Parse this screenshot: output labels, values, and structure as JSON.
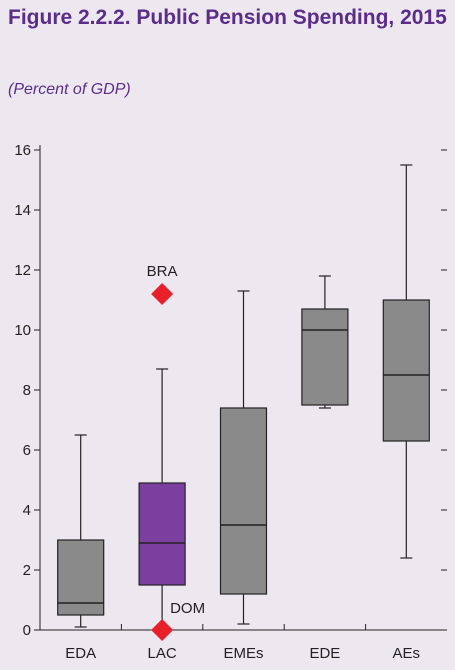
{
  "figure": {
    "title": "Figure 2.2.2. Public Pension Spending, 2015",
    "subtitle": "(Percent of GDP)"
  },
  "colors": {
    "background": "#ede8f0",
    "title": "#5b2d8a",
    "box_default": "#8a8a8a",
    "box_highlight": "#7b3fa0",
    "marker": "#e8202a"
  },
  "chart_data": {
    "type": "boxplot",
    "title": "Public Pension Spending, 2015",
    "ylabel": "",
    "ylim": [
      0,
      16
    ],
    "yticks": [
      0,
      2,
      4,
      6,
      8,
      10,
      12,
      14,
      16
    ],
    "grid": false,
    "categories": [
      "EDA",
      "LAC",
      "EMEs",
      "EDE",
      "AEs"
    ],
    "boxes": [
      {
        "category": "EDA",
        "min": 0.1,
        "q1": 0.5,
        "median": 0.9,
        "q3": 3.0,
        "max": 6.5,
        "highlight": false
      },
      {
        "category": "LAC",
        "min": 0.0,
        "q1": 1.5,
        "median": 2.9,
        "q3": 4.9,
        "max": 8.7,
        "highlight": true
      },
      {
        "category": "EMEs",
        "min": 0.2,
        "q1": 1.2,
        "median": 3.5,
        "q3": 7.4,
        "max": 11.3,
        "highlight": false
      },
      {
        "category": "EDE",
        "min": 7.4,
        "q1": 7.5,
        "median": 10.0,
        "q3": 10.7,
        "max": 11.8,
        "highlight": false
      },
      {
        "category": "AEs",
        "min": 2.4,
        "q1": 6.3,
        "median": 8.5,
        "q3": 11.0,
        "max": 15.5,
        "highlight": false
      }
    ],
    "points": [
      {
        "label": "BRA",
        "category": "LAC",
        "y": 11.2
      },
      {
        "label": "DOM",
        "category": "LAC",
        "y": 0.0
      }
    ]
  }
}
